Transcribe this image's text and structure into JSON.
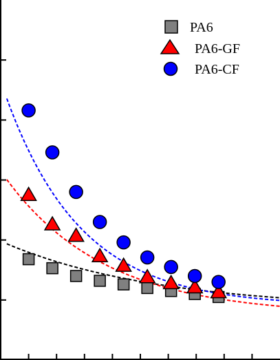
{
  "chart_data": {
    "type": "scatter",
    "title": "",
    "xlabel": "",
    "ylabel": "",
    "xlim": [
      0,
      10
    ],
    "ylim": [
      0,
      6
    ],
    "grid": false,
    "legend_position": "top-right",
    "x_ticks": [
      1,
      2,
      3,
      4,
      5,
      6,
      7,
      8,
      9
    ],
    "y_ticks": [
      1,
      2,
      3,
      4,
      5
    ],
    "series": [
      {
        "name": "PA6",
        "marker": "square",
        "color": "#808080",
        "x": [
          1.0,
          1.85,
          2.7,
          3.55,
          4.4,
          5.25,
          6.1,
          6.95,
          7.8
        ],
        "y": [
          1.68,
          1.53,
          1.4,
          1.32,
          1.26,
          1.2,
          1.15,
          1.1,
          1.05
        ]
      },
      {
        "name": "PA6-GF",
        "marker": "triangle",
        "color": "#ff0000",
        "x": [
          1.0,
          1.85,
          2.7,
          3.55,
          4.4,
          5.25,
          6.1,
          6.95,
          7.8
        ],
        "y": [
          2.75,
          2.26,
          2.07,
          1.73,
          1.57,
          1.38,
          1.28,
          1.21,
          1.13
        ]
      },
      {
        "name": "PA6-CF",
        "marker": "circle",
        "color": "#0000ff",
        "x": [
          1.0,
          1.85,
          2.7,
          3.55,
          4.4,
          5.25,
          6.1,
          6.95,
          7.8
        ],
        "y": [
          4.16,
          3.46,
          2.8,
          2.3,
          1.96,
          1.71,
          1.55,
          1.4,
          1.3
        ]
      }
    ],
    "fits": [
      {
        "series": "PA6",
        "color": "#000000",
        "style": "dashed",
        "x": [
          0,
          10
        ],
        "y0": 1.98,
        "y_inf": 0.85,
        "decay": 0.18
      },
      {
        "series": "PA6-GF",
        "color": "#ff0000",
        "style": "dashed",
        "x": [
          0,
          10
        ],
        "y0": 3.15,
        "y_inf": 0.75,
        "decay": 0.28
      },
      {
        "series": "PA6-CF",
        "color": "#0000ff",
        "style": "dashed",
        "x": [
          0,
          10
        ],
        "y0": 4.65,
        "y_inf": 0.9,
        "decay": 0.37
      }
    ]
  }
}
